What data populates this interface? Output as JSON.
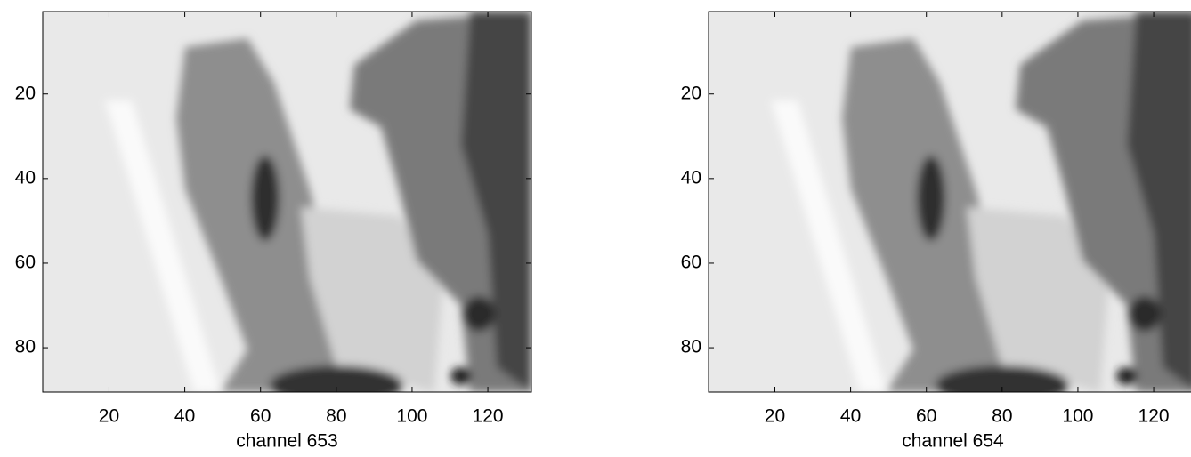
{
  "chart_data": [
    {
      "type": "image",
      "xlabel": "channel 653",
      "colormap": "gray",
      "xlim": [
        2.5,
        131.5
      ],
      "ylim": [
        0.5,
        90.5
      ],
      "y_reversed": true,
      "xticks": [
        20,
        40,
        60,
        80,
        100,
        120
      ],
      "yticks": [
        20,
        40,
        60,
        80
      ]
    },
    {
      "type": "image",
      "xlabel": "channel 654",
      "colormap": "gray",
      "xlim": [
        2.5,
        131.5
      ],
      "ylim": [
        0.5,
        90.5
      ],
      "y_reversed": true,
      "xticks": [
        20,
        40,
        60,
        80,
        100,
        120
      ],
      "yticks": [
        20,
        40,
        60,
        80
      ]
    }
  ]
}
